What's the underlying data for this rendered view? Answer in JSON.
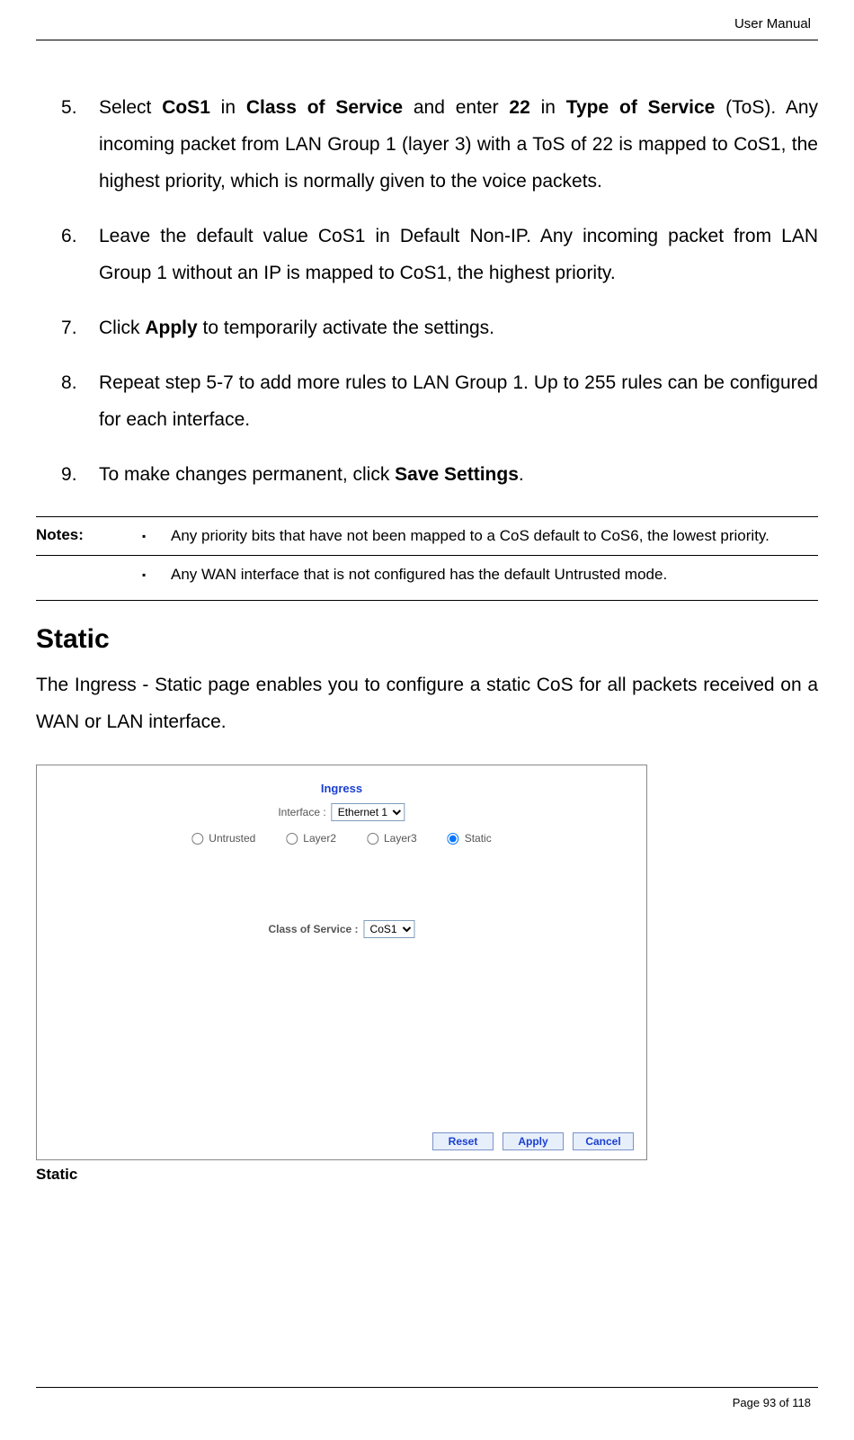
{
  "header": {
    "right_label": "User Manual"
  },
  "list": {
    "items": [
      {
        "parts": [
          {
            "t": "Select "
          },
          {
            "t": "CoS1",
            "b": true
          },
          {
            "t": " in "
          },
          {
            "t": "Class of Service",
            "b": true
          },
          {
            "t": " and enter "
          },
          {
            "t": "22",
            "b": true
          },
          {
            "t": " in "
          },
          {
            "t": "Type of Service",
            "b": true
          },
          {
            "t": " (ToS). Any incoming packet from LAN Group 1 (layer 3) with a ToS of 22 is mapped to CoS1, the highest priority, which is normally given to the voice packets."
          }
        ]
      },
      {
        "parts": [
          {
            "t": "Leave the default value CoS1 in Default Non-IP. Any incoming packet from LAN Group 1 without an IP is mapped to CoS1, the highest priority."
          }
        ]
      },
      {
        "parts": [
          {
            "t": "Click "
          },
          {
            "t": "Apply",
            "b": true
          },
          {
            "t": " to temporarily activate the settings."
          }
        ]
      },
      {
        "parts": [
          {
            "t": "Repeat step 5-7 to add more rules to LAN Group 1. Up to 255 rules can be configured for each interface."
          }
        ]
      },
      {
        "parts": [
          {
            "t": "To make changes permanent, click "
          },
          {
            "t": "Save Settings",
            "b": true
          },
          {
            "t": "."
          }
        ]
      }
    ]
  },
  "notes": {
    "label": "Notes:",
    "items": [
      "Any priority bits that have not been mapped to a CoS default to CoS6, the lowest priority.",
      "Any WAN interface that is not configured has the default Untrusted mode."
    ]
  },
  "section": {
    "heading": "Static",
    "paragraph": "The Ingress - Static page enables you to configure a static CoS for all packets received on a WAN or LAN interface."
  },
  "panel": {
    "title": "Ingress",
    "interface_label": "Interface :",
    "interface_value": "Ethernet 1",
    "radios": {
      "untrusted": "Untrusted",
      "layer2": "Layer2",
      "layer3": "Layer3",
      "static": "Static"
    },
    "cos_label": "Class of Service :",
    "cos_value": "CoS1",
    "buttons": {
      "reset": "Reset",
      "apply": "Apply",
      "cancel": "Cancel"
    },
    "caption": "Static"
  },
  "footer": {
    "page_text": "Page 93 of 118"
  }
}
